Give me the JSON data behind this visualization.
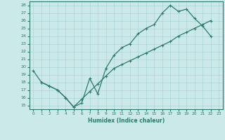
{
  "xlabel": "Humidex (Indice chaleur)",
  "xlim": [
    -0.5,
    23.5
  ],
  "ylim": [
    14.5,
    28.5
  ],
  "yticks": [
    15,
    16,
    17,
    18,
    19,
    20,
    21,
    22,
    23,
    24,
    25,
    26,
    27,
    28
  ],
  "xticks": [
    0,
    1,
    2,
    3,
    4,
    5,
    6,
    7,
    8,
    9,
    10,
    11,
    12,
    13,
    14,
    15,
    16,
    17,
    18,
    19,
    20,
    21,
    22,
    23
  ],
  "bg_color": "#cce9e9",
  "line_color": "#2a7a6a",
  "grid_color": "#b0d8d8",
  "curve1_x": [
    0,
    1,
    2,
    3,
    4,
    5,
    6,
    7,
    8,
    9,
    10,
    11,
    12,
    13,
    14,
    15,
    16,
    17,
    18,
    19,
    20,
    21,
    22
  ],
  "curve1_y": [
    19.5,
    18.0,
    17.5,
    17.0,
    16.0,
    14.8,
    15.3,
    18.5,
    16.5,
    19.8,
    21.5,
    22.5,
    23.0,
    24.3,
    25.0,
    25.5,
    27.0,
    28.0,
    27.2,
    27.5,
    26.3,
    25.3,
    24.0
  ],
  "curve2_x": [
    1,
    2,
    3,
    4,
    5,
    6,
    7,
    8,
    9,
    10,
    11,
    12,
    13,
    14,
    15,
    16,
    17,
    18,
    19,
    20,
    21,
    22
  ],
  "curve2_y": [
    18.0,
    17.5,
    17.0,
    16.0,
    14.8,
    15.8,
    16.8,
    17.8,
    18.8,
    19.8,
    20.3,
    20.8,
    21.3,
    21.8,
    22.3,
    22.8,
    23.3,
    24.0,
    24.5,
    25.0,
    25.5,
    26.0
  ]
}
